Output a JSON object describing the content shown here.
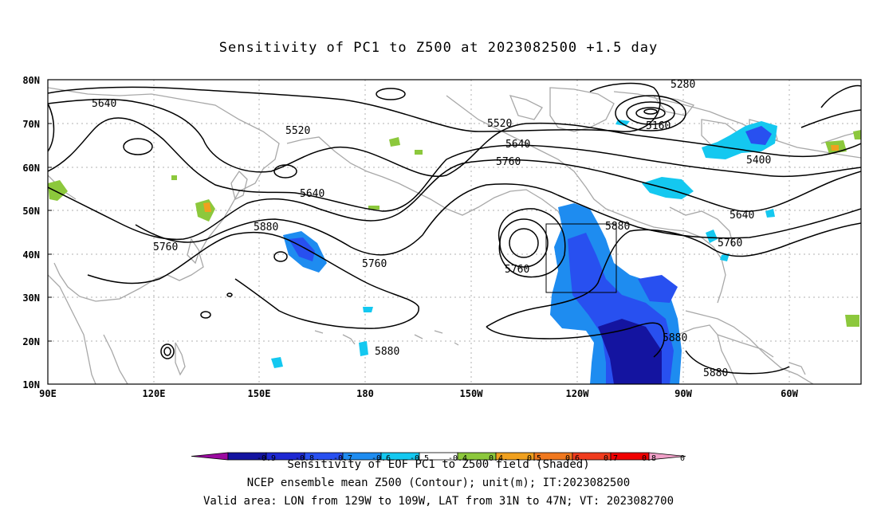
{
  "title": "Sensitivity of PC1 to Z500 at 2023082500 +1.5 day",
  "map": {
    "lat_labels": [
      "80N",
      "70N",
      "60N",
      "50N",
      "40N",
      "30N",
      "20N",
      "10N"
    ],
    "lon_labels": [
      "90E",
      "120E",
      "150E",
      "180",
      "150W",
      "120W",
      "90W",
      "60W"
    ],
    "contour_labels": [
      {
        "id": "c1",
        "text": "5640"
      },
      {
        "id": "c2",
        "text": "5520"
      },
      {
        "id": "c3",
        "text": "5640"
      },
      {
        "id": "c4",
        "text": "5760"
      },
      {
        "id": "c5",
        "text": "5880"
      },
      {
        "id": "c6",
        "text": "5760"
      },
      {
        "id": "c7",
        "text": "5520"
      },
      {
        "id": "c8",
        "text": "5640"
      },
      {
        "id": "c9",
        "text": "5760"
      },
      {
        "id": "c10",
        "text": "5760"
      },
      {
        "id": "c11",
        "text": "5880"
      },
      {
        "id": "c12",
        "text": "5880"
      },
      {
        "id": "c13",
        "text": "5880"
      },
      {
        "id": "c14",
        "text": "5880"
      },
      {
        "id": "c15",
        "text": "5280"
      },
      {
        "id": "c16",
        "text": "5160"
      },
      {
        "id": "c17",
        "text": "5400"
      },
      {
        "id": "c18",
        "text": "5640"
      },
      {
        "id": "c19",
        "text": "5760"
      }
    ],
    "valid_area": {
      "lon_west": "129W",
      "lon_east": "109W",
      "lat_south": "31N",
      "lat_north": "47N"
    }
  },
  "colorbar": {
    "colors": [
      "#9b0aa0",
      "#1414a0",
      "#1e28d2",
      "#2850f0",
      "#1e8cf0",
      "#14c8f0",
      "#ffffff",
      "#8cc83c",
      "#f0a01e",
      "#f0781e",
      "#f03c1e",
      "#f00000",
      "#f0a0c8"
    ],
    "labels": [
      "-0.9",
      "-0.8",
      "-0.7",
      "-0.6",
      "-0.5",
      "-0.4",
      "0.4",
      "0.5",
      "0.6",
      "0.7",
      "0.8",
      "0.9"
    ]
  },
  "captions": {
    "line1": "Sensitivity of EOF PC1 to Z500 field (Shaded)",
    "line2": "NCEP ensemble mean Z500 (Contour); unit(m); IT:2023082500",
    "line3": "Valid area: LON from 129W to 109W, LAT from 31N to 47N; VT: 2023082700"
  }
}
